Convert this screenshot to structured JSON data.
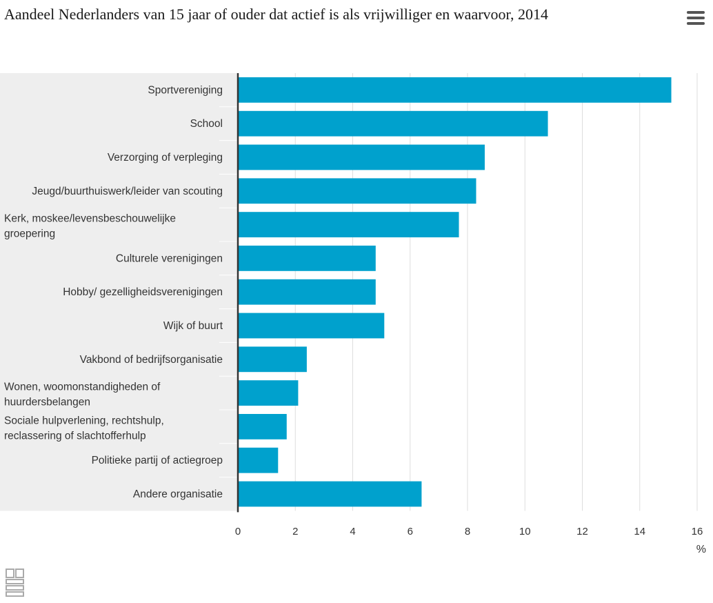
{
  "title": "Aandeel Nederlanders van 15 jaar of ouder dat actief is als vrijwilliger en waarvoor, 2014",
  "menu_icon": "hamburger-menu-icon",
  "logo_icon": "cbs-logo-icon",
  "colors": {
    "bar": "#00a1cd",
    "label_band": "#eeeeee",
    "grid": "#dddddd",
    "axis": "#333333"
  },
  "chart_data": {
    "type": "bar",
    "orientation": "horizontal",
    "categories": [
      "Sportvereniging",
      "School",
      "Verzorging of verpleging",
      "Jeugd/buurthuiswerk/leider van scouting",
      "Kerk, moskee/levensbeschouwelijke groepering",
      "Culturele verenigingen",
      "Hobby/ gezelligheidsverenigingen",
      "Wijk of buurt",
      "Vakbond of bedrijfsorganisatie",
      "Wonen, woomonstandigheden of huurdersbelangen",
      "Sociale hulpverlening, rechtshulp, reclassering of slachtofferhulp",
      "Politieke partij of actiegroep",
      "Andere organisatie"
    ],
    "values": [
      15.1,
      10.8,
      8.6,
      8.3,
      7.7,
      4.8,
      4.8,
      5.1,
      2.4,
      2.1,
      1.7,
      1.4,
      6.4
    ],
    "xlim": [
      0,
      16
    ],
    "xticks": [
      0,
      2,
      4,
      6,
      8,
      10,
      12,
      14,
      16
    ],
    "xlabel": "%",
    "grid": true
  }
}
